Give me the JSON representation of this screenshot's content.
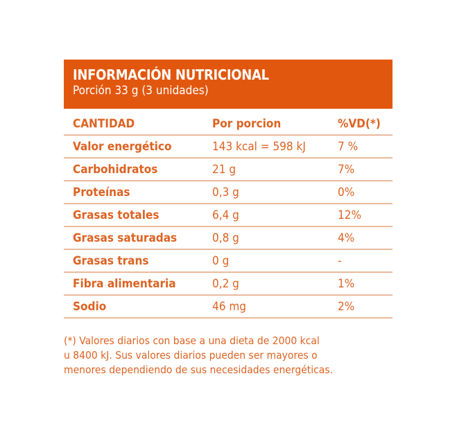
{
  "title": "INFORMACIÓN NUTRICIONAL",
  "serving": "Porción 33 g (3 unidades)",
  "columns": [
    "CANTIDAD",
    "Por porcion",
    "%VD(*)"
  ],
  "rows": [
    {
      "name": "Valor energético",
      "amount": "143 kcal = 598 kJ",
      "dv": "7 %"
    },
    {
      "name": "Carbohidratos",
      "amount": "21 g",
      "dv": "7%"
    },
    {
      "name": "Proteínas",
      "amount": "0,3 g",
      "dv": "0%"
    },
    {
      "name": "Grasas totales",
      "amount": "6,4 g",
      "dv": "12%"
    },
    {
      "name": "Grasas saturadas",
      "amount": "0,8 g",
      "dv": "4%"
    },
    {
      "name": "Grasas trans",
      "amount": "0 g",
      "dv": " -"
    },
    {
      "name": "Fibra alimentaria",
      "amount": "0,2 g",
      "dv": "1%"
    },
    {
      "name": "Sodio",
      "amount": "46 mg",
      "dv": "2%"
    }
  ],
  "footnote": [
    "(*) Valores diarios con base a una dieta de 2000 kcal",
    "u 8400 kJ. Sus valores diarios pueden ser mayores o",
    "menores dependiendo de sus necesidades energéticas."
  ]
}
